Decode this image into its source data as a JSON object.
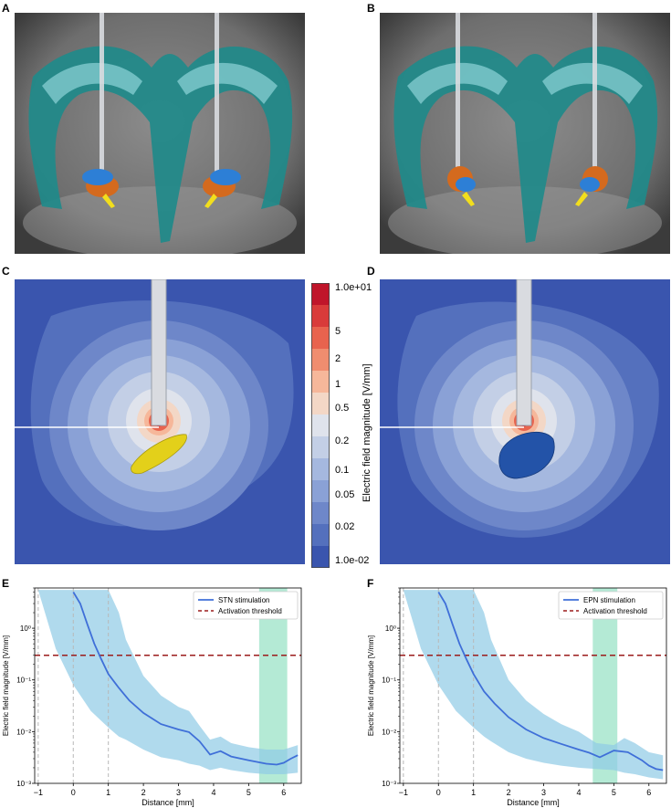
{
  "panels": {
    "a": "A",
    "b": "B",
    "c": "C",
    "d": "D",
    "e": "E",
    "f": "F"
  },
  "colorbar": {
    "title": "Electric field magnitude [V/mm]",
    "ticks": [
      "1.0e+01",
      "5",
      "2",
      "1",
      "0.5",
      "0.2",
      "0.1",
      "0.05",
      "0.02",
      "1.0e-02"
    ],
    "colors": [
      "#c0152a",
      "#d93b3a",
      "#e8634e",
      "#f08d6f",
      "#f6b79a",
      "#f3d7c6",
      "#dfe3ec",
      "#c3cfe6",
      "#a5b8df",
      "#8aa1d6",
      "#6e87c9",
      "#5470bd",
      "#3a55ae"
    ]
  },
  "chart_data": [
    {
      "type": "line",
      "panel": "E",
      "xlabel": "Distance [mm]",
      "ylabel": "Electric field magnitude [V/mm]",
      "xlim": [
        -1.1,
        6.5
      ],
      "ylim": [
        0.001,
        6.0
      ],
      "yscale": "log",
      "xticks": [
        -1,
        0,
        1,
        2,
        3,
        4,
        5,
        6
      ],
      "yticks": [
        {
          "v": 1,
          "label": "10⁰"
        },
        {
          "v": 0.1,
          "label": "10⁻¹"
        },
        {
          "v": 0.01,
          "label": "10⁻²"
        },
        {
          "v": 0.001,
          "label": "10⁻³"
        }
      ],
      "vlines": [
        -1,
        0,
        1
      ],
      "threshold": 0.3,
      "highlight": [
        5.3,
        6.1
      ],
      "legend": {
        "placement": "top-right",
        "entries": [
          "STN stimulation",
          "Activation threshold"
        ]
      },
      "series": [
        {
          "name": "STN stimulation",
          "x": [
            0.0,
            0.2,
            0.4,
            0.6,
            0.8,
            1.0,
            1.3,
            1.6,
            2.0,
            2.5,
            3.0,
            3.3,
            3.6,
            3.9,
            4.2,
            4.5,
            5.0,
            5.5,
            5.8,
            6.0,
            6.2,
            6.4
          ],
          "y": [
            5.0,
            3.0,
            1.2,
            0.5,
            0.25,
            0.13,
            0.07,
            0.04,
            0.023,
            0.014,
            0.011,
            0.0098,
            0.0065,
            0.0036,
            0.0042,
            0.0033,
            0.0028,
            0.0024,
            0.0023,
            0.0025,
            0.003,
            0.0035
          ]
        }
      ],
      "band": {
        "x": [
          -1.0,
          -0.5,
          0.0,
          0.5,
          1.0,
          1.3,
          1.5,
          2.0,
          2.5,
          3.0,
          3.3,
          3.6,
          3.9,
          4.2,
          4.5,
          5.0,
          5.5,
          6.0,
          6.4
        ],
        "upper": [
          5.5,
          5.5,
          5.5,
          5.5,
          5.5,
          2.0,
          0.6,
          0.12,
          0.05,
          0.03,
          0.025,
          0.013,
          0.007,
          0.008,
          0.006,
          0.005,
          0.0045,
          0.0045,
          0.0055
        ],
        "lower": [
          5.5,
          0.4,
          0.08,
          0.025,
          0.012,
          0.008,
          0.007,
          0.0045,
          0.0032,
          0.0028,
          0.0024,
          0.0022,
          0.0018,
          0.002,
          0.0018,
          0.0016,
          0.0015,
          0.0015,
          0.0016
        ]
      }
    },
    {
      "type": "line",
      "panel": "F",
      "xlabel": "Distance [mm]",
      "ylabel": "Electric field magnitude [V/mm]",
      "xlim": [
        -1.1,
        6.5
      ],
      "ylim": [
        0.001,
        6.0
      ],
      "yscale": "log",
      "xticks": [
        -1,
        0,
        1,
        2,
        3,
        4,
        5,
        6
      ],
      "yticks": [
        {
          "v": 1,
          "label": "10⁰"
        },
        {
          "v": 0.1,
          "label": "10⁻¹"
        },
        {
          "v": 0.01,
          "label": "10⁻²"
        },
        {
          "v": 0.001,
          "label": "10⁻³"
        }
      ],
      "vlines": [
        -1,
        0,
        1
      ],
      "threshold": 0.3,
      "highlight": [
        4.4,
        5.1
      ],
      "legend": {
        "placement": "top-right",
        "entries": [
          "EPN stimulation",
          "Activation threshold"
        ]
      },
      "series": [
        {
          "name": "EPN stimulation",
          "x": [
            0.0,
            0.2,
            0.4,
            0.6,
            0.8,
            1.0,
            1.3,
            1.6,
            2.0,
            2.5,
            3.0,
            3.5,
            4.0,
            4.3,
            4.6,
            5.0,
            5.4,
            5.8,
            6.0,
            6.2,
            6.4
          ],
          "y": [
            5.0,
            3.0,
            1.2,
            0.5,
            0.25,
            0.13,
            0.06,
            0.035,
            0.019,
            0.011,
            0.0075,
            0.0058,
            0.0045,
            0.0039,
            0.0032,
            0.0043,
            0.004,
            0.0028,
            0.0022,
            0.0019,
            0.0018
          ]
        }
      ],
      "band": {
        "x": [
          -1.0,
          -0.5,
          0.0,
          0.5,
          1.0,
          1.3,
          1.5,
          2.0,
          2.5,
          3.0,
          3.5,
          4.0,
          4.5,
          5.0,
          5.3,
          5.6,
          6.0,
          6.4
        ],
        "upper": [
          5.5,
          5.5,
          5.5,
          5.5,
          5.5,
          2.0,
          0.6,
          0.1,
          0.04,
          0.022,
          0.014,
          0.01,
          0.006,
          0.0055,
          0.0075,
          0.006,
          0.004,
          0.0035
        ],
        "lower": [
          5.5,
          0.4,
          0.08,
          0.025,
          0.012,
          0.008,
          0.0065,
          0.004,
          0.003,
          0.0025,
          0.0022,
          0.002,
          0.0019,
          0.0018,
          0.0016,
          0.0015,
          0.0013,
          0.0012
        ]
      }
    }
  ]
}
